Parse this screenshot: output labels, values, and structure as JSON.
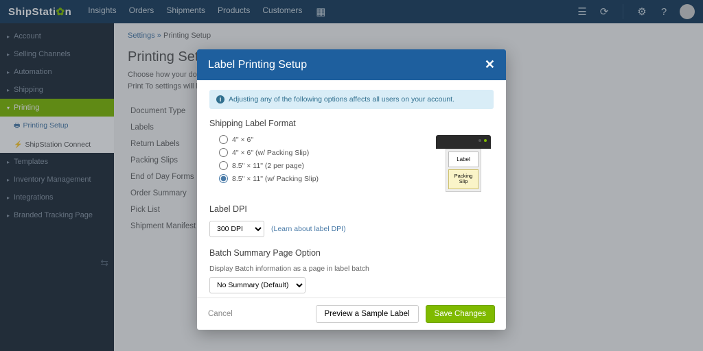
{
  "logo": {
    "pre": "ShipStati",
    "post": "n"
  },
  "nav": [
    "Insights",
    "Orders",
    "Shipments",
    "Products",
    "Customers"
  ],
  "breadcrumb": {
    "root": "Settings",
    "current": "Printing Setup"
  },
  "page": {
    "title": "Printing Setup",
    "desc1": "Choose how your doc",
    "desc2": "Print To settings will b"
  },
  "sidebar": {
    "items": [
      "Account",
      "Selling Channels",
      "Automation",
      "Shipping"
    ],
    "active": "Printing",
    "sub1": "Printing Setup",
    "sub2": "ShipStation Connect",
    "after": [
      "Templates",
      "Inventory Management",
      "Integrations",
      "Branded Tracking Page"
    ]
  },
  "docTypes": [
    "Document Type",
    "Labels",
    "Return Labels",
    "Packing Slips",
    "End of Day Forms",
    "Order Summary",
    "Pick List",
    "Shipment Manifest"
  ],
  "modal": {
    "title": "Label Printing Setup",
    "info": "Adjusting any of the following options affects all users on your account.",
    "format": {
      "heading": "Shipping Label Format",
      "opts": [
        "4\" × 6\"",
        "4\" × 6\" (w/ Packing Slip)",
        "8.5\" × 11\" (2 per page)",
        "8.5\" × 11\" (w/ Packing Slip)"
      ],
      "selected": 3,
      "diag": {
        "label": "Label",
        "slip": "Packing\nSlip"
      }
    },
    "dpi": {
      "heading": "Label DPI",
      "value": "300 DPI",
      "link": "Learn about label DPI"
    },
    "batch": {
      "heading": "Batch Summary Page Option",
      "sub": "Display Batch information as a page in label batch",
      "value": "No Summary (Default)"
    },
    "footer": {
      "cancel": "Cancel",
      "preview": "Preview a Sample Label",
      "save": "Save Changes"
    }
  }
}
